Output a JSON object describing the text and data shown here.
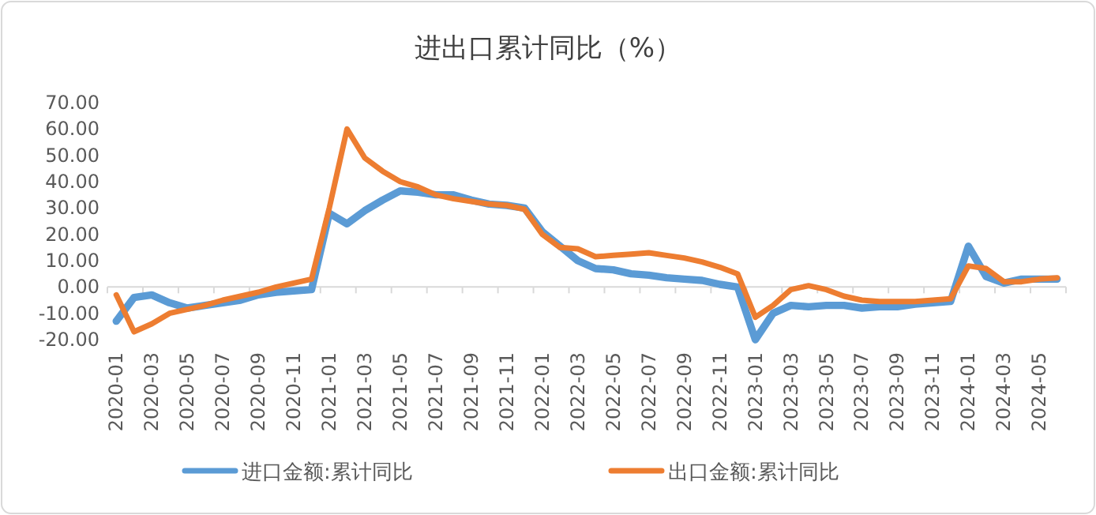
{
  "chart_data": {
    "type": "line",
    "title": "进出口累计同比（%）",
    "categories": [
      "2020-01",
      null,
      "2020-03",
      null,
      "2020-05",
      null,
      "2020-07",
      null,
      "2020-09",
      null,
      "2020-11",
      null,
      "2021-01",
      null,
      "2021-03",
      null,
      "2021-05",
      null,
      "2021-07",
      null,
      "2021-09",
      null,
      "2021-11",
      null,
      "2022-01",
      null,
      "2022-03",
      null,
      "2022-05",
      null,
      "2022-07",
      null,
      "2022-09",
      null,
      "2022-11",
      null,
      "2023-01",
      null,
      "2023-03",
      null,
      "2023-05",
      null,
      "2023-07",
      null,
      "2023-09",
      null,
      "2023-11",
      null,
      "2024-01",
      null,
      "2024-03",
      null,
      "2024-05",
      null
    ],
    "series": [
      {
        "name": "进口金额:累计同比",
        "color": "#5b9bd5",
        "values": [
          -13,
          -4,
          -3,
          -6,
          -8,
          -7,
          -6,
          -5,
          -3,
          -2,
          -1.5,
          -1,
          28,
          24,
          29,
          33,
          36.5,
          36,
          35,
          35,
          33,
          31.5,
          31,
          30,
          21,
          15.5,
          10,
          7,
          6.5,
          5,
          4.5,
          3.5,
          3,
          2.5,
          1,
          0,
          -20,
          -10,
          -7,
          -7.5,
          -7,
          -7,
          -8,
          -7.5,
          -7.5,
          -6.5,
          -6,
          -5.5,
          15.5,
          4,
          1.5,
          3,
          3,
          3
        ]
      },
      {
        "name": "出口金额:累计同比",
        "color": "#ed7d31",
        "values": [
          -3,
          -17,
          -14,
          -10,
          -8.5,
          -7,
          -5,
          -3.5,
          -2,
          0,
          1.5,
          3,
          30,
          60,
          49,
          44,
          40,
          38,
          35,
          33.5,
          32.5,
          31.5,
          31,
          29.5,
          20,
          15,
          14.5,
          11.5,
          12,
          12.5,
          13,
          12,
          11,
          9.5,
          7.5,
          5,
          -11.5,
          -7,
          -1,
          0.5,
          -1,
          -3.5,
          -5,
          -5.5,
          -5.5,
          -5.5,
          -5,
          -4.5,
          8,
          7,
          2,
          2,
          3,
          3.5
        ]
      }
    ],
    "ylim": [
      -20,
      70
    ],
    "yticks": [
      {
        "value": -20,
        "label": "-20.00"
      },
      {
        "value": -10,
        "label": "-10.00"
      },
      {
        "value": 0,
        "label": "0.00"
      },
      {
        "value": 10,
        "label": "10.00"
      },
      {
        "value": 20,
        "label": "20.00"
      },
      {
        "value": 30,
        "label": "30.00"
      },
      {
        "value": 40,
        "label": "40.00"
      },
      {
        "value": 50,
        "label": "50.00"
      },
      {
        "value": 60,
        "label": "60.00"
      },
      {
        "value": 70,
        "label": "70.00"
      }
    ],
    "legend": "bottom",
    "marker": "none",
    "line_style": "solid"
  }
}
